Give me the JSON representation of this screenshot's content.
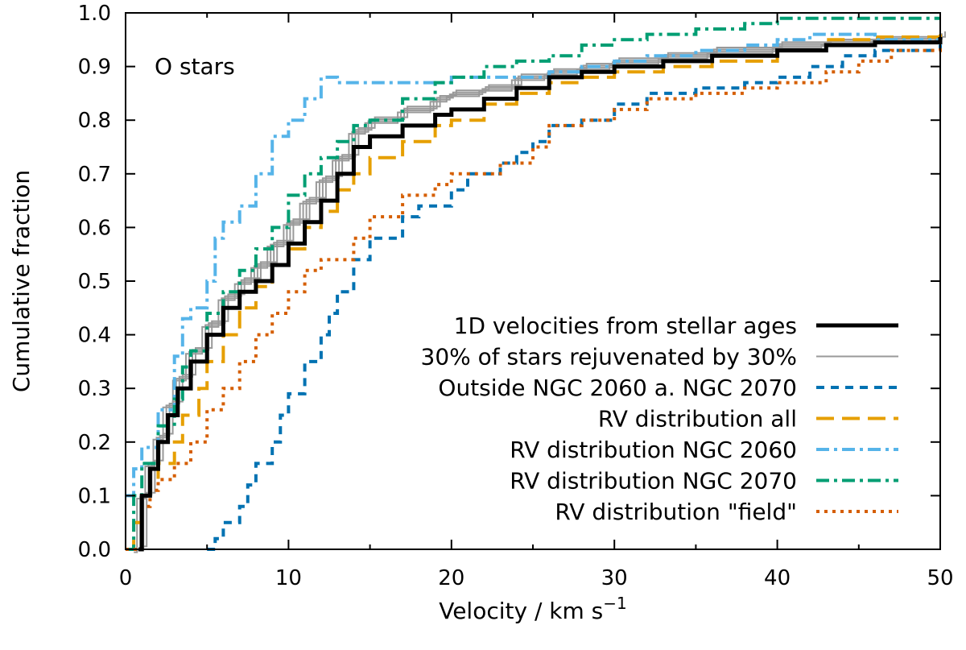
{
  "chart_data": {
    "type": "line",
    "step": true,
    "annotation": "O stars",
    "xlabel": "Velocity / km s",
    "xlabel_superscript": "−1",
    "ylabel": "Cumulative fraction",
    "xlim": [
      0,
      50
    ],
    "ylim": [
      0,
      1
    ],
    "xticks": [
      0,
      10,
      20,
      30,
      40,
      50
    ],
    "yticks": [
      0.0,
      0.1,
      0.2,
      0.3,
      0.4,
      0.5,
      0.6,
      0.7,
      0.8,
      0.9,
      1.0
    ],
    "xtick_labels": [
      "0",
      "10",
      "20",
      "30",
      "40",
      "50"
    ],
    "ytick_labels": [
      "0.0",
      "0.1",
      "0.2",
      "0.3",
      "0.4",
      "0.5",
      "0.6",
      "0.7",
      "0.8",
      "0.9",
      "1.0"
    ],
    "legend_position": "lower-right",
    "series": [
      {
        "name": "1D velocities from stellar ages",
        "color": "#000000",
        "style": "solid",
        "width": 5,
        "points": [
          [
            0.8,
            0
          ],
          [
            1,
            0.1
          ],
          [
            1.5,
            0.15
          ],
          [
            2,
            0.2
          ],
          [
            2.6,
            0.25
          ],
          [
            3.2,
            0.3
          ],
          [
            4,
            0.35
          ],
          [
            5,
            0.4
          ],
          [
            6,
            0.45
          ],
          [
            7,
            0.48
          ],
          [
            8,
            0.5
          ],
          [
            9,
            0.53
          ],
          [
            10,
            0.57
          ],
          [
            11,
            0.61
          ],
          [
            12,
            0.65
          ],
          [
            13,
            0.7
          ],
          [
            14,
            0.75
          ],
          [
            15,
            0.77
          ],
          [
            17,
            0.79
          ],
          [
            19,
            0.81
          ],
          [
            20,
            0.82
          ],
          [
            22,
            0.84
          ],
          [
            24,
            0.86
          ],
          [
            26,
            0.88
          ],
          [
            28,
            0.89
          ],
          [
            30,
            0.9
          ],
          [
            33,
            0.91
          ],
          [
            36,
            0.92
          ],
          [
            40,
            0.93
          ],
          [
            43,
            0.94
          ],
          [
            46,
            0.945
          ],
          [
            50,
            0.955
          ]
        ]
      },
      {
        "name": "30% of stars rejuvenated by 30%",
        "color": "#999999",
        "style": "solid",
        "width": 2,
        "variants": 4,
        "points": [
          [
            0.8,
            0
          ],
          [
            1,
            0.1
          ],
          [
            1.5,
            0.16
          ],
          [
            2,
            0.21
          ],
          [
            2.6,
            0.27
          ],
          [
            3.2,
            0.32
          ],
          [
            4,
            0.37
          ],
          [
            5,
            0.42
          ],
          [
            6,
            0.47
          ],
          [
            7,
            0.5
          ],
          [
            8,
            0.53
          ],
          [
            9,
            0.57
          ],
          [
            10,
            0.61
          ],
          [
            11,
            0.65
          ],
          [
            12,
            0.69
          ],
          [
            13,
            0.73
          ],
          [
            14,
            0.78
          ],
          [
            15,
            0.8
          ],
          [
            17,
            0.82
          ],
          [
            19,
            0.84
          ],
          [
            20,
            0.85
          ],
          [
            22,
            0.86
          ],
          [
            24,
            0.88
          ],
          [
            26,
            0.89
          ],
          [
            28,
            0.9
          ],
          [
            30,
            0.91
          ],
          [
            33,
            0.92
          ],
          [
            36,
            0.93
          ],
          [
            40,
            0.94
          ],
          [
            43,
            0.945
          ],
          [
            46,
            0.95
          ],
          [
            50,
            0.96
          ]
        ]
      },
      {
        "name": "Outside NGC 2060 a. NGC 2070",
        "color": "#0072b2",
        "style": "dash",
        "width": 4,
        "points": [
          [
            5,
            0
          ],
          [
            5.5,
            0.02
          ],
          [
            6,
            0.05
          ],
          [
            7,
            0.08
          ],
          [
            7.5,
            0.12
          ],
          [
            8,
            0.16
          ],
          [
            9,
            0.2
          ],
          [
            9.5,
            0.25
          ],
          [
            10,
            0.29
          ],
          [
            11,
            0.35
          ],
          [
            12,
            0.4
          ],
          [
            12.5,
            0.44
          ],
          [
            13,
            0.48
          ],
          [
            14,
            0.54
          ],
          [
            15,
            0.58
          ],
          [
            17,
            0.62
          ],
          [
            18,
            0.64
          ],
          [
            20,
            0.67
          ],
          [
            21,
            0.7
          ],
          [
            23,
            0.72
          ],
          [
            24,
            0.74
          ],
          [
            25,
            0.76
          ],
          [
            26,
            0.79
          ],
          [
            28,
            0.8
          ],
          [
            30,
            0.83
          ],
          [
            32,
            0.85
          ],
          [
            35,
            0.86
          ],
          [
            38,
            0.87
          ],
          [
            40,
            0.88
          ],
          [
            42,
            0.9
          ],
          [
            44,
            0.92
          ],
          [
            46,
            0.93
          ],
          [
            50,
            0.95
          ]
        ]
      },
      {
        "name": "RV distribution all",
        "color": "#e69f00",
        "style": "longdash",
        "width": 4,
        "points": [
          [
            0,
            0
          ],
          [
            0.5,
            0.05
          ],
          [
            1,
            0.1
          ],
          [
            1.5,
            0.13
          ],
          [
            2,
            0.16
          ],
          [
            3,
            0.2
          ],
          [
            3.5,
            0.25
          ],
          [
            4.5,
            0.3
          ],
          [
            5,
            0.35
          ],
          [
            6,
            0.4
          ],
          [
            7,
            0.45
          ],
          [
            8,
            0.49
          ],
          [
            9,
            0.53
          ],
          [
            10,
            0.56
          ],
          [
            11,
            0.6
          ],
          [
            12,
            0.63
          ],
          [
            13,
            0.67
          ],
          [
            14,
            0.7
          ],
          [
            15,
            0.73
          ],
          [
            17,
            0.76
          ],
          [
            19,
            0.79
          ],
          [
            20,
            0.8
          ],
          [
            22,
            0.83
          ],
          [
            24,
            0.85
          ],
          [
            26,
            0.87
          ],
          [
            28,
            0.88
          ],
          [
            30,
            0.89
          ],
          [
            33,
            0.9
          ],
          [
            36,
            0.91
          ],
          [
            40,
            0.93
          ],
          [
            43,
            0.95
          ],
          [
            46,
            0.955
          ],
          [
            50,
            0.96
          ]
        ]
      },
      {
        "name": "RV distribution NGC 2060",
        "color": "#56b4e9",
        "style": "dashdot",
        "width": 4,
        "points": [
          [
            0,
            0.1
          ],
          [
            0.5,
            0.15
          ],
          [
            1,
            0.19
          ],
          [
            2,
            0.26
          ],
          [
            3,
            0.36
          ],
          [
            3.5,
            0.43
          ],
          [
            4,
            0.45
          ],
          [
            5,
            0.5
          ],
          [
            5.5,
            0.58
          ],
          [
            6,
            0.61
          ],
          [
            7,
            0.64
          ],
          [
            8,
            0.7
          ],
          [
            9,
            0.77
          ],
          [
            10,
            0.8
          ],
          [
            11,
            0.84
          ],
          [
            12,
            0.88
          ],
          [
            13,
            0.87
          ],
          [
            16,
            0.87
          ],
          [
            20,
            0.88
          ],
          [
            24,
            0.88
          ],
          [
            26,
            0.89
          ],
          [
            28,
            0.9
          ],
          [
            30,
            0.91
          ],
          [
            32,
            0.92
          ],
          [
            35,
            0.93
          ],
          [
            38,
            0.94
          ],
          [
            40,
            0.95
          ],
          [
            42,
            0.96
          ],
          [
            44,
            0.96
          ],
          [
            46,
            0.95
          ],
          [
            50,
            0.94
          ]
        ]
      },
      {
        "name": "RV distribution NGC 2070",
        "color": "#009e73",
        "style": "dashdot",
        "width": 4,
        "points": [
          [
            0,
            0
          ],
          [
            0.5,
            0.1
          ],
          [
            1,
            0.16
          ],
          [
            2,
            0.23
          ],
          [
            3,
            0.28
          ],
          [
            3.5,
            0.34
          ],
          [
            4,
            0.37
          ],
          [
            5,
            0.44
          ],
          [
            6,
            0.48
          ],
          [
            7,
            0.52
          ],
          [
            8,
            0.56
          ],
          [
            9,
            0.6
          ],
          [
            10,
            0.66
          ],
          [
            11,
            0.7
          ],
          [
            12,
            0.73
          ],
          [
            13,
            0.76
          ],
          [
            14,
            0.79
          ],
          [
            15,
            0.8
          ],
          [
            17,
            0.84
          ],
          [
            19,
            0.87
          ],
          [
            20,
            0.88
          ],
          [
            22,
            0.9
          ],
          [
            24,
            0.91
          ],
          [
            26,
            0.92
          ],
          [
            28,
            0.94
          ],
          [
            30,
            0.95
          ],
          [
            32,
            0.96
          ],
          [
            35,
            0.97
          ],
          [
            38,
            0.98
          ],
          [
            40,
            0.99
          ],
          [
            43,
            0.99
          ],
          [
            50,
            0.99
          ]
        ]
      },
      {
        "name": "RV distribution \"field\"",
        "color": "#d55e00",
        "style": "dot",
        "width": 4,
        "points": [
          [
            0,
            0
          ],
          [
            1,
            0.08
          ],
          [
            1.5,
            0.11
          ],
          [
            2,
            0.13
          ],
          [
            3,
            0.16
          ],
          [
            4,
            0.2
          ],
          [
            5,
            0.26
          ],
          [
            6,
            0.3
          ],
          [
            7,
            0.35
          ],
          [
            8,
            0.4
          ],
          [
            9,
            0.44
          ],
          [
            10,
            0.48
          ],
          [
            11,
            0.52
          ],
          [
            12,
            0.54
          ],
          [
            14,
            0.58
          ],
          [
            15,
            0.62
          ],
          [
            17,
            0.66
          ],
          [
            19,
            0.68
          ],
          [
            20,
            0.7
          ],
          [
            23,
            0.72
          ],
          [
            25,
            0.75
          ],
          [
            26,
            0.79
          ],
          [
            28,
            0.8
          ],
          [
            30,
            0.82
          ],
          [
            32,
            0.84
          ],
          [
            35,
            0.85
          ],
          [
            38,
            0.86
          ],
          [
            40,
            0.87
          ],
          [
            43,
            0.89
          ],
          [
            45,
            0.91
          ],
          [
            47,
            0.93
          ],
          [
            50,
            0.94
          ]
        ]
      }
    ]
  }
}
